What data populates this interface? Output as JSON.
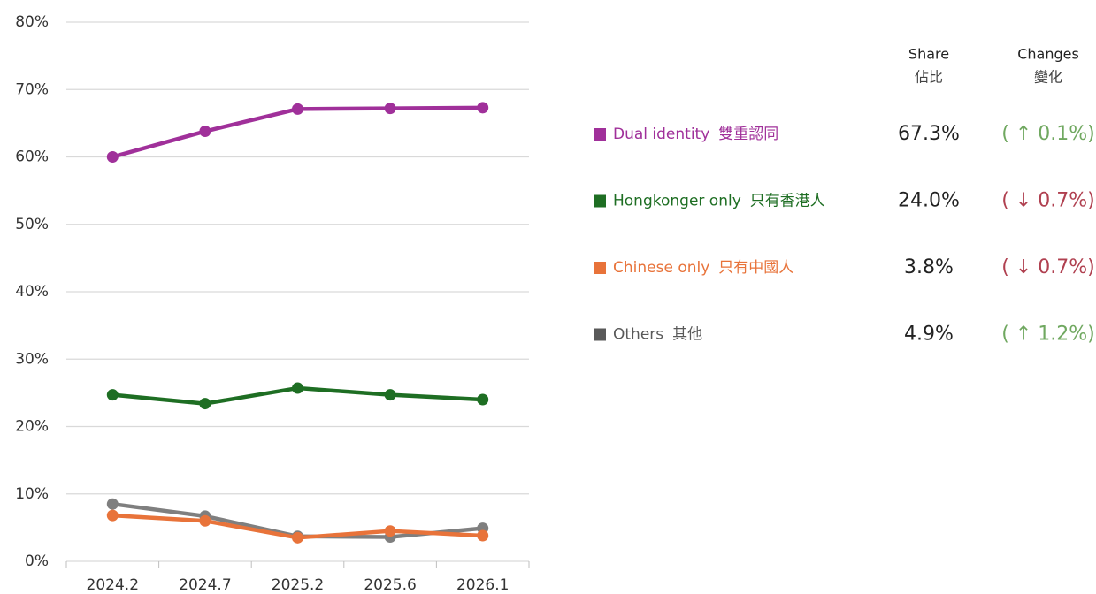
{
  "chart_data": {
    "type": "line",
    "categories": [
      "2024.2",
      "2024.7",
      "2025.2",
      "2025.6",
      "2026.1"
    ],
    "series": [
      {
        "name": "Dual identity",
        "name_zh": "雙重認同",
        "color": "#a0309a",
        "values": [
          60.0,
          63.8,
          67.1,
          67.2,
          67.3
        ],
        "share": "67.3%",
        "change": "( ↑ 0.1%)",
        "change_color": "#70a860"
      },
      {
        "name": "Hongkonger only",
        "name_zh": "只有香港人",
        "color": "#1e6e23",
        "values": [
          24.7,
          23.4,
          25.7,
          24.7,
          24.0
        ],
        "share": "24.0%",
        "change": "( ↓ 0.7%)",
        "change_color": "#b04050"
      },
      {
        "name": "Chinese only",
        "name_zh": "只有中國人",
        "color": "#e8733a",
        "values": [
          6.8,
          6.0,
          3.5,
          4.5,
          3.8
        ],
        "share": "3.8%",
        "change": "( ↓ 0.7%)",
        "change_color": "#b04050"
      },
      {
        "name": "Others",
        "name_zh": "其他",
        "color": "#7f7f7f",
        "values": [
          8.5,
          6.7,
          3.7,
          3.6,
          4.9
        ],
        "share": "4.9%",
        "change": "( ↑ 1.2%)",
        "change_color": "#70a860"
      }
    ],
    "table_headers": [
      {
        "en": "Share",
        "zh": "佔比"
      },
      {
        "en": "Changes",
        "zh": "變化"
      }
    ],
    "ylim": [
      0,
      80
    ],
    "yticks": [
      {
        "value": 0,
        "label": "0%"
      },
      {
        "value": 10,
        "label": "10%"
      },
      {
        "value": 20,
        "label": "20%"
      },
      {
        "value": 30,
        "label": "30%"
      },
      {
        "value": 40,
        "label": "40%"
      },
      {
        "value": 50,
        "label": "50%"
      },
      {
        "value": 60,
        "label": "60%"
      },
      {
        "value": 70,
        "label": "70%"
      },
      {
        "value": 80,
        "label": "80%"
      }
    ],
    "grid": true
  }
}
